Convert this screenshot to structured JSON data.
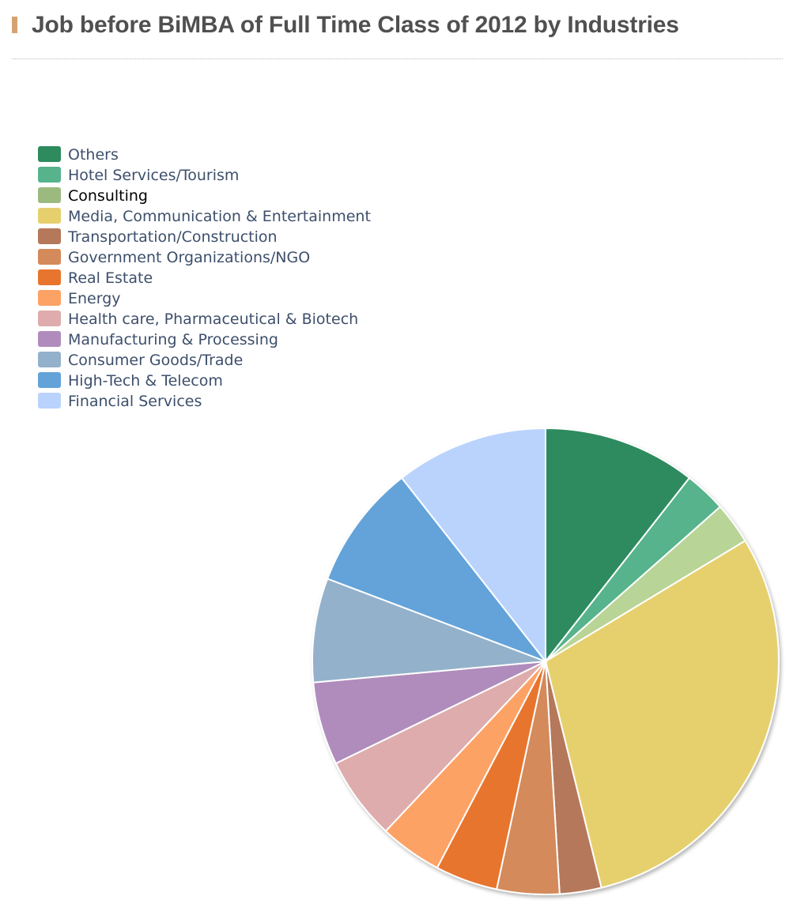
{
  "header": {
    "title": "Job before BiMBA of Full Time Class of 2012 by Industries"
  },
  "chart_data": {
    "type": "pie",
    "title": "Job before BiMBA of Full Time Class of 2012 by Industries",
    "legend_position": "top-left",
    "highlighted_category": "Consulting",
    "start_angle": "12 o'clock, clockwise",
    "categories": [
      "Others",
      "Hotel Services/Tourism",
      "Consulting",
      "Media, Communication & Entertainment",
      "Transportation/Construction",
      "Government Organizations/NGO",
      "Real Estate",
      "Energy",
      "Health care, Pharmaceutical & Biotech",
      "Manufacturing & Processing",
      "Consumer Goods/Trade",
      "High-Tech & Telecom",
      "Financial Services"
    ],
    "values": [
      11,
      3,
      3,
      31,
      3,
      4.5,
      4.5,
      4.5,
      6,
      6,
      7.5,
      9,
      11
    ],
    "colors": [
      "#2e8b5e",
      "#56b38b",
      "#b8d496",
      "#e6d06e",
      "#b5785a",
      "#d48a5a",
      "#e8752e",
      "#fda265",
      "#deacac",
      "#b08cbd",
      "#93b1ca",
      "#64a3d9",
      "#bad3fd"
    ],
    "legend_colors": [
      "#2e8b5e",
      "#56b38b",
      "#9cba80",
      "#e6d06e",
      "#b5785a",
      "#d48a5a",
      "#e8752e",
      "#fda265",
      "#deacac",
      "#b08cbd",
      "#93b1ca",
      "#64a3d9",
      "#bad3fd"
    ]
  }
}
